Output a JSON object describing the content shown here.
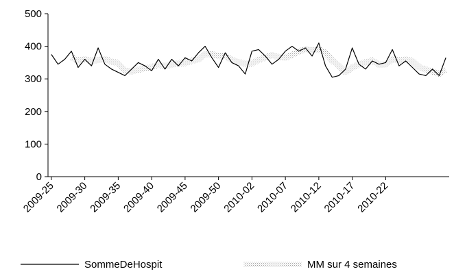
{
  "chart_data": {
    "type": "line",
    "categories": [
      "2009-25",
      null,
      null,
      null,
      null,
      "2009-30",
      null,
      null,
      null,
      null,
      "2009-35",
      null,
      null,
      null,
      null,
      "2009-40",
      null,
      null,
      null,
      null,
      "2009-45",
      null,
      null,
      null,
      null,
      "2009-50",
      null,
      null,
      null,
      null,
      "2010-02",
      null,
      null,
      null,
      null,
      "2010-07",
      null,
      null,
      null,
      null,
      "2010-12",
      null,
      null,
      null,
      null,
      "2010-17",
      null,
      null,
      null,
      null,
      "2010-22",
      null,
      null,
      null,
      null,
      null,
      null,
      null,
      null,
      null
    ],
    "series": [
      {
        "name": "SommeDeHospit",
        "color": "#000000",
        "values": [
          375,
          345,
          360,
          385,
          335,
          360,
          340,
          395,
          345,
          330,
          320,
          310,
          330,
          350,
          340,
          325,
          360,
          330,
          360,
          340,
          365,
          355,
          380,
          400,
          365,
          335,
          380,
          350,
          340,
          315,
          385,
          390,
          370,
          345,
          360,
          385,
          400,
          385,
          395,
          370,
          410,
          340,
          305,
          310,
          330,
          395,
          345,
          330,
          355,
          345,
          350,
          390,
          340,
          355,
          335,
          315,
          310,
          330,
          310,
          365
        ]
      },
      {
        "name": "MM sur 4 semaines",
        "color": "#a0a0a0",
        "values": [
          null,
          null,
          null,
          366,
          356,
          360,
          355,
          358,
          360,
          353,
          348,
          326,
          323,
          328,
          333,
          336,
          344,
          339,
          344,
          348,
          349,
          355,
          360,
          375,
          375,
          370,
          370,
          358,
          351,
          346,
          348,
          358,
          365,
          373,
          366,
          365,
          373,
          383,
          391,
          388,
          390,
          379,
          356,
          341,
          321,
          335,
          345,
          350,
          356,
          344,
          345,
          360,
          356,
          359,
          355,
          336,
          329,
          323,
          316,
          329
        ]
      }
    ],
    "ylim": [
      0,
      500
    ],
    "yticks": [
      0,
      100,
      200,
      300,
      400,
      500
    ],
    "grid": false,
    "legend": "bottom"
  }
}
